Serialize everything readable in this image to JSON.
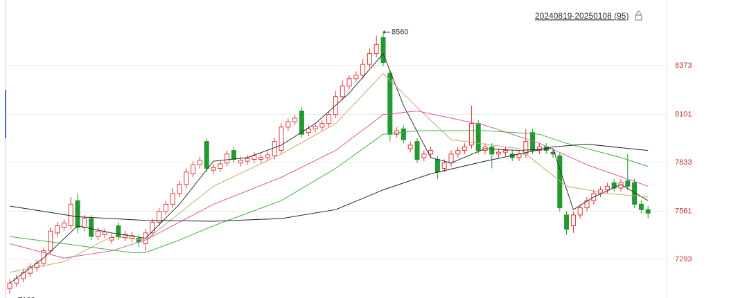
{
  "chart_data": {
    "type": "candlestick",
    "title": "20240819-20250108 (95)",
    "ylim": [
      7077,
      8739
    ],
    "yticks": [
      7293,
      7561,
      7833,
      8101,
      8373
    ],
    "grid": true,
    "up_color": "#e0343a",
    "down_color": "#1f9a2e",
    "candles": {
      "open": [
        7130,
        7160,
        7185,
        7215,
        7245,
        7270,
        7340,
        7440,
        7470,
        7480,
        7620,
        7470,
        7520,
        7420,
        7430,
        7400,
        7480,
        7415,
        7410,
        7410,
        7380,
        7440,
        7500,
        7560,
        7600,
        7660,
        7710,
        7770,
        7820,
        7950,
        7790,
        7800,
        7830,
        7900,
        7830,
        7840,
        7850,
        7850,
        7860,
        7870,
        7900,
        8030,
        8060,
        8120,
        8000,
        8020,
        8030,
        8050,
        8100,
        8200,
        8260,
        8300,
        8320,
        8380,
        8440,
        8530,
        8330,
        7990,
        8020,
        7910,
        7950,
        7860,
        7880,
        7850,
        7800,
        7830,
        7880,
        7900,
        7930,
        8050,
        7900,
        7920,
        7880,
        7890,
        7880,
        7860,
        7880,
        8000,
        7900,
        7920,
        7890,
        7870,
        7540,
        7480,
        7540,
        7580,
        7620,
        7660,
        7680,
        7720,
        7690,
        7730,
        7720,
        7600,
        7570
      ],
      "high": [
        7180,
        7205,
        7240,
        7270,
        7290,
        7360,
        7470,
        7500,
        7515,
        7640,
        7660,
        7540,
        7540,
        7470,
        7465,
        7435,
        7500,
        7452,
        7445,
        7430,
        7460,
        7520,
        7580,
        7620,
        7690,
        7730,
        7800,
        7840,
        7865,
        7970,
        7825,
        7845,
        7900,
        7920,
        7865,
        7875,
        7890,
        7882,
        7895,
        7970,
        8050,
        8080,
        8100,
        8140,
        8040,
        8055,
        8070,
        8120,
        8230,
        8290,
        8320,
        8340,
        8410,
        8470,
        8540,
        8560,
        8350,
        8030,
        8040,
        7950,
        7970,
        7900,
        7920,
        7870,
        7850,
        7900,
        7920,
        7940,
        8150,
        8070,
        7940,
        7940,
        7910,
        7920,
        7900,
        7900,
        8020,
        8020,
        7940,
        7940,
        7910,
        7890,
        7560,
        7560,
        7600,
        7640,
        7680,
        7700,
        7720,
        7740,
        7740,
        7880,
        7740,
        7620,
        7590
      ],
      "low": [
        7102,
        7140,
        7165,
        7195,
        7225,
        7250,
        7320,
        7420,
        7450,
        7460,
        7440,
        7450,
        7400,
        7400,
        7410,
        7380,
        7400,
        7395,
        7390,
        7360,
        7340,
        7420,
        7480,
        7540,
        7580,
        7640,
        7690,
        7750,
        7800,
        7780,
        7770,
        7780,
        7810,
        7830,
        7810,
        7820,
        7830,
        7830,
        7840,
        7850,
        7880,
        8010,
        8040,
        7970,
        7980,
        8000,
        8010,
        8030,
        8080,
        8180,
        8240,
        8280,
        8300,
        8360,
        8420,
        8370,
        7950,
        7970,
        7940,
        7890,
        7830,
        7840,
        7860,
        7740,
        7780,
        7810,
        7860,
        7880,
        7910,
        7880,
        7880,
        7800,
        7860,
        7870,
        7840,
        7840,
        7860,
        7880,
        7880,
        7880,
        7860,
        7560,
        7430,
        7440,
        7520,
        7560,
        7600,
        7640,
        7660,
        7670,
        7670,
        7680,
        7580,
        7550,
        7520
      ],
      "close": [
        7160,
        7185,
        7220,
        7250,
        7270,
        7340,
        7450,
        7480,
        7495,
        7600,
        7470,
        7520,
        7420,
        7450,
        7445,
        7415,
        7420,
        7432,
        7425,
        7390,
        7440,
        7500,
        7560,
        7600,
        7660,
        7710,
        7780,
        7820,
        7845,
        7800,
        7805,
        7825,
        7880,
        7850,
        7845,
        7855,
        7870,
        7862,
        7875,
        7950,
        8030,
        8060,
        8080,
        7990,
        8020,
        8035,
        8050,
        8100,
        8200,
        8260,
        8300,
        8320,
        8380,
        8440,
        8490,
        8390,
        7990,
        8010,
        7960,
        7930,
        7850,
        7880,
        7900,
        7780,
        7830,
        7880,
        7900,
        7920,
        8050,
        7900,
        7920,
        7880,
        7890,
        7900,
        7860,
        7880,
        7950,
        7900,
        7920,
        7900,
        7880,
        7580,
        7460,
        7540,
        7580,
        7620,
        7660,
        7680,
        7700,
        7690,
        7720,
        7700,
        7600,
        7570,
        7550
      ]
    },
    "high_label_index": 55,
    "low_label_index": 0,
    "lines": [
      {
        "color": "#333333",
        "x": [
          0,
          5,
          10,
          15,
          20,
          25,
          30,
          35,
          40,
          45,
          50,
          55,
          58,
          62,
          65,
          70,
          75,
          80,
          83,
          86,
          90,
          94
        ],
        "values": [
          7160,
          7300,
          7480,
          7440,
          7410,
          7600,
          7840,
          7860,
          7930,
          8050,
          8220,
          8440,
          8150,
          7860,
          7830,
          7910,
          7900,
          7910,
          7570,
          7640,
          7710,
          7620
        ]
      },
      {
        "color": "#c9a66b",
        "x": [
          0,
          8,
          15,
          20,
          30,
          40,
          48,
          55,
          60,
          65,
          75,
          82,
          88,
          94
        ],
        "values": [
          7220,
          7280,
          7420,
          7400,
          7700,
          7880,
          8050,
          8330,
          8140,
          7960,
          7910,
          7700,
          7660,
          7640
        ]
      },
      {
        "color": "#d4579b",
        "x": [
          0,
          8,
          15,
          20,
          30,
          40,
          48,
          55,
          60,
          70,
          78,
          85,
          94
        ],
        "values": [
          7380,
          7300,
          7340,
          7400,
          7600,
          7750,
          7900,
          8100,
          8120,
          8040,
          7940,
          7820,
          7700
        ]
      },
      {
        "color": "#3cb43c",
        "x": [
          0,
          10,
          18,
          20,
          25,
          30,
          40,
          48,
          55,
          60,
          70,
          78,
          82,
          90,
          94
        ],
        "values": [
          7420,
          7370,
          7330,
          7330,
          7400,
          7480,
          7620,
          7800,
          7990,
          8010,
          8010,
          7990,
          7940,
          7860,
          7810
        ]
      },
      {
        "color": "#222222",
        "x": [
          0,
          10,
          20,
          30,
          40,
          48,
          55,
          62,
          70,
          80,
          85,
          94
        ],
        "values": [
          7590,
          7530,
          7510,
          7505,
          7520,
          7570,
          7680,
          7770,
          7840,
          7920,
          7935,
          7900
        ]
      }
    ]
  }
}
